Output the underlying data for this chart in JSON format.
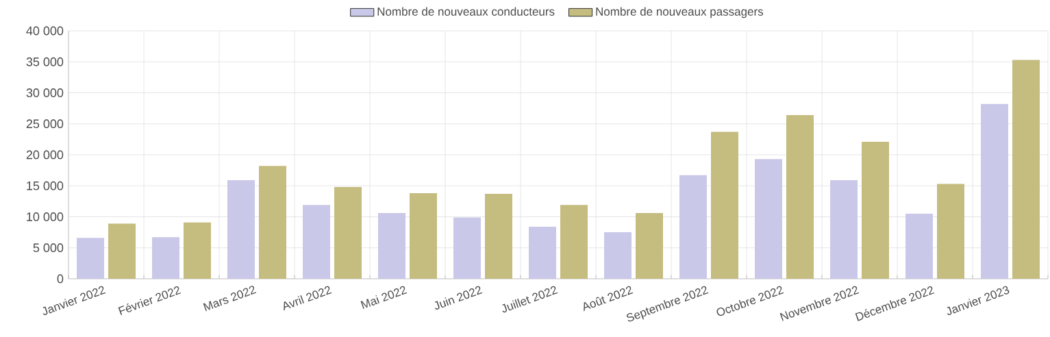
{
  "chart_data": {
    "type": "bar",
    "categories": [
      "Janvier 2022",
      "Février 2022",
      "Mars 2022",
      "Avril 2022",
      "Mai 2022",
      "Juin 2022",
      "Juillet 2022",
      "Août 2022",
      "Septembre 2022",
      "Octobre 2022",
      "Novembre 2022",
      "Décembre 2022",
      "Janvier 2023"
    ],
    "series": [
      {
        "name": "Nombre de nouveaux conducteurs",
        "color": "#cac8e8",
        "values": [
          6600,
          6700,
          15900,
          11900,
          10600,
          9900,
          8400,
          7500,
          16700,
          19300,
          15900,
          10500,
          28200
        ]
      },
      {
        "name": "Nombre de nouveaux passagers",
        "color": "#c5bc80",
        "values": [
          8900,
          9100,
          18200,
          14800,
          13800,
          13700,
          11900,
          10600,
          23700,
          26400,
          22100,
          15300,
          35300
        ]
      }
    ],
    "ylim": [
      0,
      40000
    ],
    "yticks": [
      {
        "value": 0,
        "label": "0"
      },
      {
        "value": 5000,
        "label": "5 000"
      },
      {
        "value": 10000,
        "label": "10 000"
      },
      {
        "value": 15000,
        "label": "15 000"
      },
      {
        "value": 20000,
        "label": "20 000"
      },
      {
        "value": 25000,
        "label": "25 000"
      },
      {
        "value": 30000,
        "label": "30 000"
      },
      {
        "value": 35000,
        "label": "35 000"
      },
      {
        "value": 40000,
        "label": "40 000"
      }
    ],
    "grid": true,
    "legend": "top"
  }
}
